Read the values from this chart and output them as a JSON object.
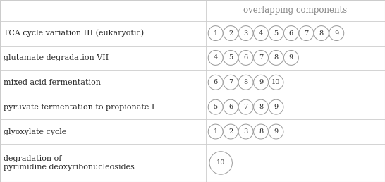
{
  "header": [
    "",
    "overlapping components"
  ],
  "rows": [
    {
      "label": "TCA cycle variation III (eukaryotic)",
      "numbers": [
        1,
        2,
        3,
        4,
        5,
        6,
        7,
        8,
        9
      ]
    },
    {
      "label": "glutamate degradation VII",
      "numbers": [
        4,
        5,
        6,
        7,
        8,
        9
      ]
    },
    {
      "label": "mixed acid fermentation",
      "numbers": [
        6,
        7,
        8,
        9,
        10
      ]
    },
    {
      "label": "pyruvate fermentation to propionate I",
      "numbers": [
        5,
        6,
        7,
        8,
        9
      ]
    },
    {
      "label": "glyoxylate cycle",
      "numbers": [
        1,
        2,
        3,
        8,
        9
      ]
    },
    {
      "label": "degradation of\npyrimidine deoxyribonucleosides",
      "numbers": [
        10
      ]
    }
  ],
  "col_split": 0.535,
  "bg_color": "#ffffff",
  "text_color": "#2a2a2a",
  "circle_edge_color": "#999999",
  "header_text_color": "#888888",
  "grid_color": "#cccccc",
  "font_size": 8.0,
  "header_font_size": 8.5,
  "circle_font_size": 7.0,
  "row_heights_rel": [
    0.85,
    1.0,
    1.0,
    1.0,
    1.0,
    1.0,
    1.55
  ],
  "fig_w": 5.46,
  "fig_h": 2.58,
  "dpi": 100
}
